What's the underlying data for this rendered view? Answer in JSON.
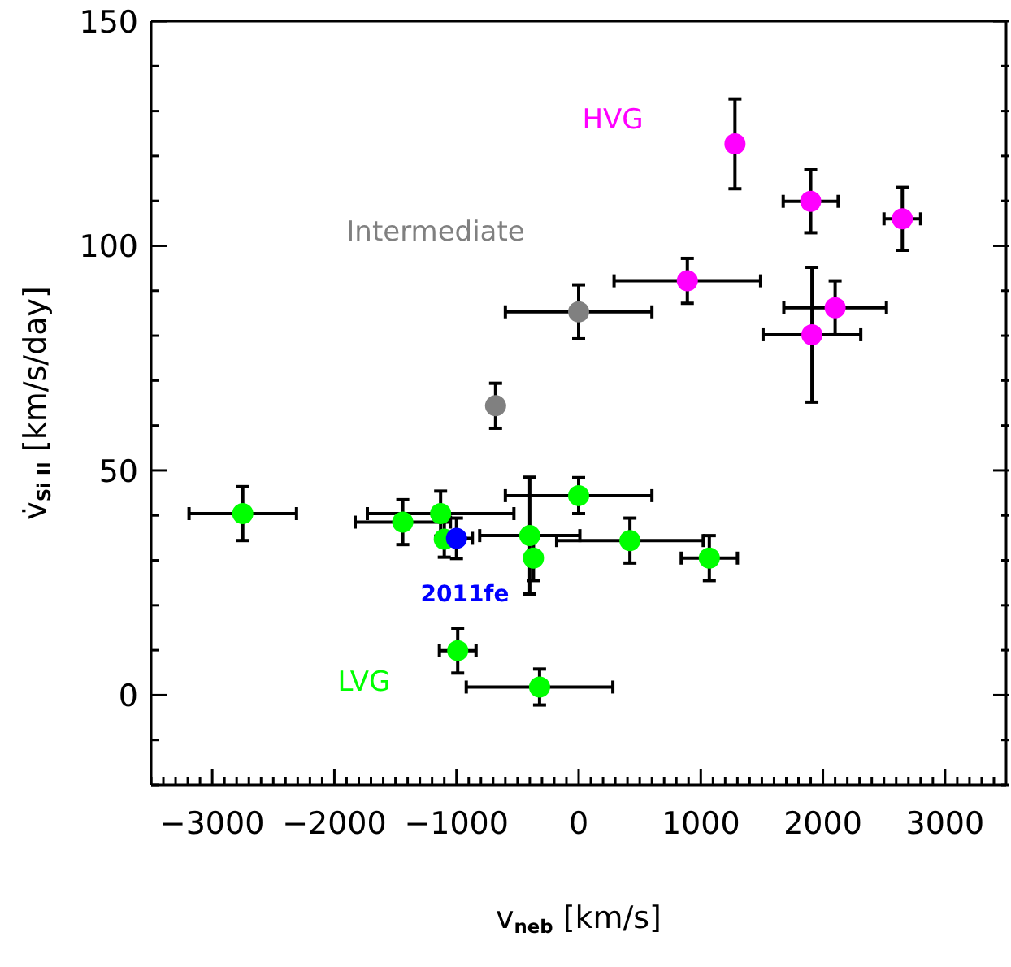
{
  "chart_data": {
    "type": "scatter",
    "xlabel": "v$_{neb}$ [km/s]",
    "ylabel": "v̇$_{Si II}$ [km/s/day]",
    "xlim": [
      -3500,
      3500
    ],
    "ylim": [
      -20,
      150
    ],
    "xticks": [
      {
        "value": -3500,
        "label": null
      },
      {
        "value": -3400,
        "label": null
      },
      {
        "value": -3300,
        "label": null
      },
      {
        "value": -3200,
        "label": null
      },
      {
        "value": -3100,
        "label": null
      },
      {
        "value": -3000,
        "label": "−3000"
      },
      {
        "value": -2900,
        "label": null
      },
      {
        "value": -2800,
        "label": null
      },
      {
        "value": -2700,
        "label": null
      },
      {
        "value": -2600,
        "label": null
      },
      {
        "value": -2500,
        "label": null
      },
      {
        "value": -2400,
        "label": null
      },
      {
        "value": -2300,
        "label": null
      },
      {
        "value": -2200,
        "label": null
      },
      {
        "value": -2100,
        "label": null
      },
      {
        "value": -2000,
        "label": "−2000"
      },
      {
        "value": -1900,
        "label": null
      },
      {
        "value": -1800,
        "label": null
      },
      {
        "value": -1700,
        "label": null
      },
      {
        "value": -1600,
        "label": null
      },
      {
        "value": -1500,
        "label": null
      },
      {
        "value": -1400,
        "label": null
      },
      {
        "value": -1300,
        "label": null
      },
      {
        "value": -1200,
        "label": null
      },
      {
        "value": -1100,
        "label": null
      },
      {
        "value": -1000,
        "label": "−1000"
      },
      {
        "value": -900,
        "label": null
      },
      {
        "value": -800,
        "label": null
      },
      {
        "value": -700,
        "label": null
      },
      {
        "value": -600,
        "label": null
      },
      {
        "value": -500,
        "label": null
      },
      {
        "value": -400,
        "label": null
      },
      {
        "value": -300,
        "label": null
      },
      {
        "value": -200,
        "label": null
      },
      {
        "value": -100,
        "label": null
      },
      0,
      {
        "value": 100,
        "label": null
      },
      {
        "value": 200,
        "label": null
      },
      {
        "value": 300,
        "label": null
      },
      {
        "value": 400,
        "label": null
      },
      {
        "value": 500,
        "label": null
      },
      {
        "value": 600,
        "label": null
      },
      {
        "value": 700,
        "label": null
      },
      {
        "value": 800,
        "label": null
      },
      {
        "value": 900,
        "label": null
      },
      1000,
      {
        "value": 1100,
        "label": null
      },
      {
        "value": 1200,
        "label": null
      },
      {
        "value": 1300,
        "label": null
      },
      {
        "value": 1400,
        "label": null
      },
      {
        "value": 1500,
        "label": null
      },
      {
        "value": 1600,
        "label": null
      },
      {
        "value": 1700,
        "label": null
      },
      {
        "value": 1800,
        "label": null
      },
      {
        "value": 1900,
        "label": null
      },
      2000,
      {
        "value": 2100,
        "label": null
      },
      {
        "value": 2200,
        "label": null
      },
      {
        "value": 2300,
        "label": null
      },
      {
        "value": 2400,
        "label": null
      },
      {
        "value": 2500,
        "label": null
      },
      {
        "value": 2600,
        "label": null
      },
      {
        "value": 2700,
        "label": null
      },
      {
        "value": 2800,
        "label": null
      },
      {
        "value": 2900,
        "label": null
      },
      3000,
      {
        "value": 3100,
        "label": null
      },
      {
        "value": 3200,
        "label": null
      },
      {
        "value": 3300,
        "label": null
      },
      {
        "value": 3400,
        "label": null
      }
    ],
    "yticks": [
      {
        "value": -20,
        "label": null
      },
      {
        "value": -10,
        "label": null
      },
      0,
      {
        "value": 10,
        "label": null
      },
      {
        "value": 20,
        "label": null
      },
      {
        "value": 30,
        "label": null
      },
      {
        "value": 40,
        "label": null
      },
      50,
      {
        "value": 60,
        "label": null
      },
      {
        "value": 70,
        "label": null
      },
      {
        "value": 80,
        "label": null
      },
      {
        "value": 90,
        "label": null
      },
      100,
      {
        "value": 110,
        "label": null
      },
      {
        "value": 120,
        "label": null
      },
      {
        "value": 130,
        "label": null
      },
      {
        "value": 140,
        "label": null
      },
      150
    ],
    "marker": "circle",
    "series": [
      {
        "color": "#ff00ff",
        "x": [
          1280,
          1900,
          2650,
          890,
          2100,
          1910
        ],
        "values": [
          122.7,
          109.9,
          106,
          92.2,
          86.2,
          80.2
        ],
        "errors": [
          10,
          7,
          7,
          5,
          6,
          15
        ],
        "xerrors": [
          null,
          225,
          150,
          600,
          420,
          400
        ]
      },
      {
        "color": "#808080",
        "x": [
          0,
          -680
        ],
        "values": [
          85.3,
          64.4
        ],
        "errors": [
          6,
          5
        ],
        "xerrors": [
          600,
          null
        ]
      },
      {
        "color": "#00ff00",
        "x": [
          -2750,
          -1440,
          -1130,
          -1100,
          -400,
          -370,
          0,
          420,
          1070,
          -990,
          -320
        ],
        "values": [
          40.4,
          38.5,
          40.4,
          34.7,
          35.5,
          30.5,
          44.4,
          34.4,
          30.5,
          9.9,
          1.8
        ],
        "errors": [
          6,
          5,
          5,
          4,
          13,
          5,
          4,
          5,
          5,
          5,
          4
        ],
        "xerrors": [
          440,
          390,
          600,
          null,
          410,
          null,
          600,
          600,
          230,
          150,
          600
        ]
      },
      {
        "color": "#0000ff",
        "x": [
          -1000
        ],
        "values": [
          34.9
        ],
        "errors": [
          4.5
        ],
        "xerrors": [
          130
        ]
      }
    ],
    "annotations": [
      "HVG",
      "Intermediate",
      "LVG",
      "2011fe"
    ]
  }
}
